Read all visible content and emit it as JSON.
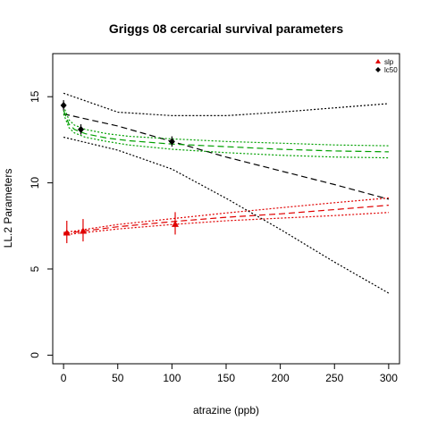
{
  "chart_data": {
    "type": "scatter",
    "title": "Griggs 08 cercarial survival parameters",
    "xlabel": "atrazine (ppb)",
    "ylabel": "LL.2 Parameters",
    "xlim": [
      -10,
      310
    ],
    "ylim": [
      -0.5,
      17.5
    ],
    "xticks": [
      0,
      50,
      100,
      150,
      200,
      250,
      300
    ],
    "yticks": [
      0,
      5,
      10,
      15
    ],
    "grid": false,
    "legend": {
      "position": "top-right",
      "entries": [
        {
          "label": "slp",
          "color": "#e00000",
          "marker": "triangle"
        },
        {
          "label": "lc50",
          "color": "#000000",
          "marker": "diamond"
        }
      ]
    },
    "series": [
      {
        "name": "slp",
        "color": "#e00000",
        "points": [
          {
            "x": 3,
            "y": 7.1,
            "ylo": 6.5,
            "yhi": 7.8
          },
          {
            "x": 18,
            "y": 7.2,
            "ylo": 6.6,
            "yhi": 7.9
          },
          {
            "x": 103,
            "y": 7.6,
            "ylo": 7.0,
            "yhi": 8.3
          }
        ],
        "fit": {
          "x": [
            0,
            10,
            20,
            50,
            100,
            150,
            200,
            250,
            300
          ],
          "y": [
            7.05,
            7.13,
            7.22,
            7.45,
            7.75,
            8.0,
            8.2,
            8.45,
            8.7
          ],
          "lo": [
            6.98,
            7.05,
            7.12,
            7.32,
            7.58,
            7.8,
            7.95,
            8.1,
            8.28
          ],
          "hi": [
            7.12,
            7.2,
            7.3,
            7.58,
            7.92,
            8.25,
            8.55,
            8.85,
            9.12
          ]
        }
      },
      {
        "name": "lc50",
        "color": "#000000",
        "points": [
          {
            "x": 0,
            "y": 14.5,
            "ylo": 14.2,
            "yhi": 14.8
          },
          {
            "x": 16,
            "y": 13.1,
            "ylo": 12.8,
            "yhi": 13.4
          },
          {
            "x": 100,
            "y": 12.4,
            "ylo": 12.1,
            "yhi": 12.7
          }
        ],
        "fit": {
          "x": [
            0,
            50,
            100,
            150,
            200,
            250,
            300
          ],
          "y": [
            14.0,
            13.3,
            12.4,
            11.5,
            10.7,
            9.9,
            9.05
          ],
          "lo": [
            12.65,
            11.9,
            10.8,
            9.1,
            7.3,
            5.4,
            3.6
          ],
          "hi": [
            15.2,
            14.1,
            13.9,
            13.9,
            14.1,
            14.35,
            14.6
          ]
        }
      },
      {
        "name": "lc50 trend",
        "color": "#00a000",
        "fit": {
          "x": [
            0,
            5,
            10,
            20,
            40,
            60,
            100,
            150,
            200,
            250,
            300
          ],
          "y": [
            14.2,
            13.4,
            13.1,
            12.85,
            12.6,
            12.45,
            12.25,
            12.1,
            11.95,
            11.85,
            11.8
          ],
          "lo": [
            14.0,
            13.2,
            12.9,
            12.65,
            12.4,
            12.2,
            11.95,
            11.75,
            11.6,
            11.5,
            11.45
          ],
          "hi": [
            14.45,
            13.65,
            13.35,
            13.1,
            12.85,
            12.7,
            12.55,
            12.4,
            12.3,
            12.2,
            12.15
          ]
        }
      }
    ]
  }
}
